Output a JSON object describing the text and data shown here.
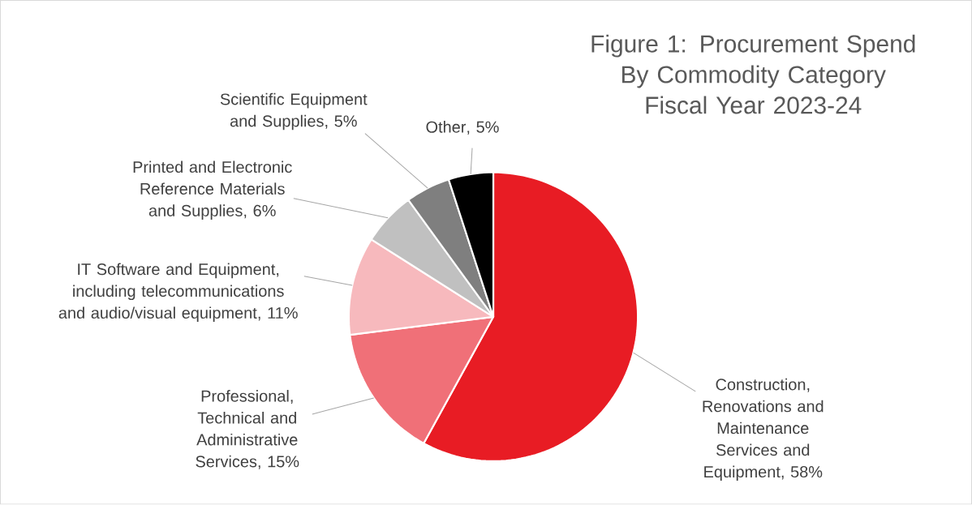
{
  "chart_data": {
    "type": "pie",
    "title": "Figure 1: Procurement Spend By Commodity Category",
    "subtitle": "Fiscal Year 2023-24",
    "categories": [
      "Construction, Renovations and Maintenance Services and Equipment",
      "Professional, Technical and Administrative Services",
      "IT Software and Equipment, including telecommunications and audio/visual equipment",
      "Printed and Electronic Reference Materials and Supplies",
      "Scientific Equipment and Supplies",
      "Other"
    ],
    "values": [
      58,
      15,
      11,
      6,
      5,
      5
    ],
    "value_labels": [
      ", 58%",
      ", 15%",
      ", 11%",
      ", 6%",
      ", 5%",
      ", 5%"
    ],
    "colors": [
      "#e81c24",
      "#f07078",
      "#f7b9bd",
      "#c0c0c0",
      "#7f7f7f",
      "#000000"
    ]
  }
}
